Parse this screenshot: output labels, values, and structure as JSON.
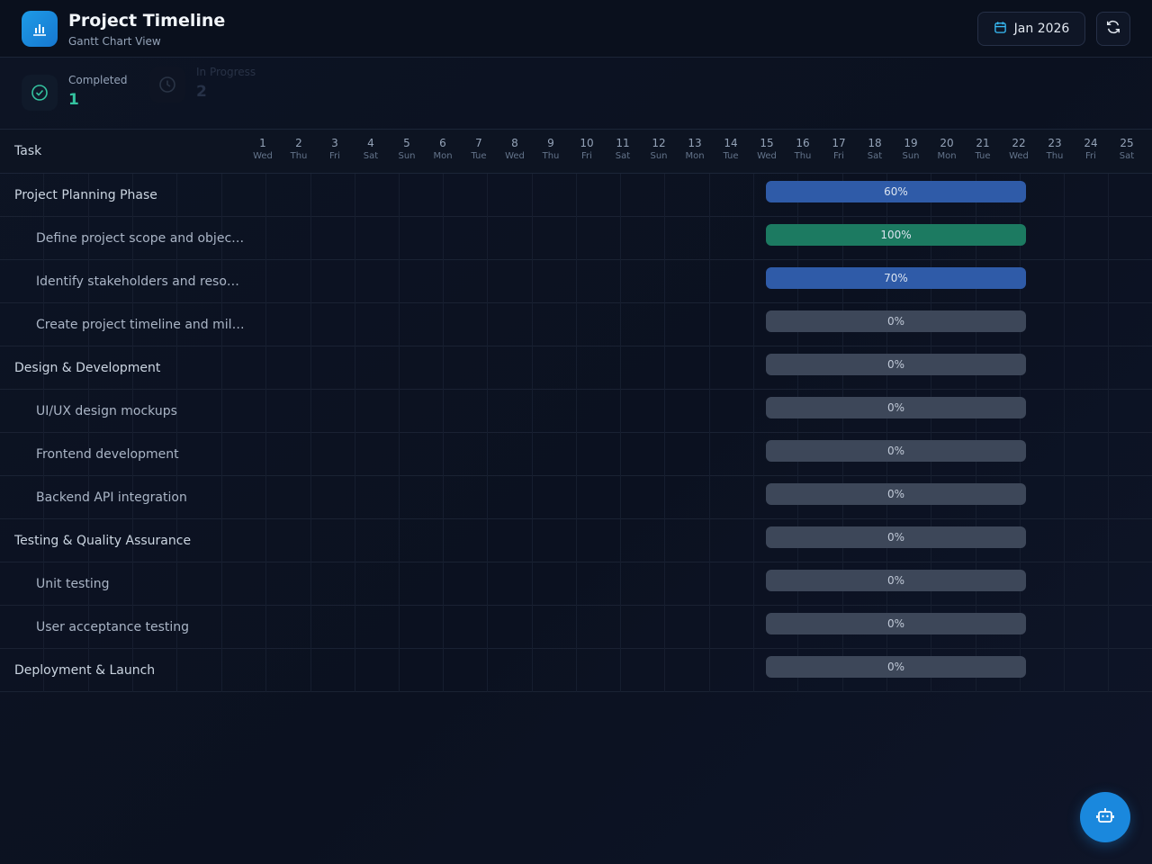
{
  "header": {
    "title": "Project Timeline",
    "subtitle": "Gantt Chart View",
    "month_label": "Jan 2026",
    "logo_icon": "bar-chart-icon",
    "calendar_icon": "calendar-icon",
    "refresh_icon": "refresh-icon"
  },
  "stats": [
    {
      "label": "Completed",
      "value": "1",
      "icon": "check-circle-icon",
      "color": "#34c3a0"
    },
    {
      "label": "In Progress",
      "value": "2",
      "icon": "clock-icon",
      "color": "#3b82f6"
    }
  ],
  "grid": {
    "task_header": "Task",
    "days": [
      {
        "num": "1",
        "name": "Wed"
      },
      {
        "num": "2",
        "name": "Thu"
      },
      {
        "num": "3",
        "name": "Fri"
      },
      {
        "num": "4",
        "name": "Sat"
      },
      {
        "num": "5",
        "name": "Sun"
      },
      {
        "num": "6",
        "name": "Mon"
      },
      {
        "num": "7",
        "name": "Tue"
      },
      {
        "num": "8",
        "name": "Wed"
      },
      {
        "num": "9",
        "name": "Thu"
      },
      {
        "num": "10",
        "name": "Fri"
      },
      {
        "num": "11",
        "name": "Sat"
      },
      {
        "num": "12",
        "name": "Sun"
      },
      {
        "num": "13",
        "name": "Mon"
      },
      {
        "num": "14",
        "name": "Tue"
      },
      {
        "num": "15",
        "name": "Wed"
      },
      {
        "num": "16",
        "name": "Thu"
      },
      {
        "num": "17",
        "name": "Fri"
      },
      {
        "num": "18",
        "name": "Sat"
      },
      {
        "num": "19",
        "name": "Sun"
      },
      {
        "num": "20",
        "name": "Mon"
      },
      {
        "num": "21",
        "name": "Tue"
      },
      {
        "num": "22",
        "name": "Wed"
      },
      {
        "num": "23",
        "name": "Thu"
      },
      {
        "num": "24",
        "name": "Fri"
      },
      {
        "num": "25",
        "name": "Sat"
      }
    ],
    "tasks": [
      {
        "name": "Project Planning Phase",
        "level": "parent",
        "progress": "60%",
        "status": "progress"
      },
      {
        "name": "Define project scope and objectives",
        "level": "child",
        "progress": "100%",
        "status": "done"
      },
      {
        "name": "Identify stakeholders and resources",
        "level": "child",
        "progress": "70%",
        "status": "progress"
      },
      {
        "name": "Create project timeline and milestones",
        "level": "child",
        "progress": "0%",
        "status": "todo"
      },
      {
        "name": "Design & Development",
        "level": "parent",
        "progress": "0%",
        "status": "todo"
      },
      {
        "name": "UI/UX design mockups",
        "level": "child",
        "progress": "0%",
        "status": "todo"
      },
      {
        "name": "Frontend development",
        "level": "child",
        "progress": "0%",
        "status": "todo"
      },
      {
        "name": "Backend API integration",
        "level": "child",
        "progress": "0%",
        "status": "todo"
      },
      {
        "name": "Testing & Quality Assurance",
        "level": "parent",
        "progress": "0%",
        "status": "todo"
      },
      {
        "name": "Unit testing",
        "level": "child",
        "progress": "0%",
        "status": "todo"
      },
      {
        "name": "User acceptance testing",
        "level": "child",
        "progress": "0%",
        "status": "todo"
      },
      {
        "name": "Deployment & Launch",
        "level": "parent",
        "progress": "0%",
        "status": "todo"
      }
    ]
  },
  "fab": {
    "icon": "bot-icon"
  },
  "colors": {
    "accent": "#1a88dd",
    "done": "#1c7a61",
    "in_progress": "#2f5ba8",
    "not_started": "#3d4759"
  }
}
